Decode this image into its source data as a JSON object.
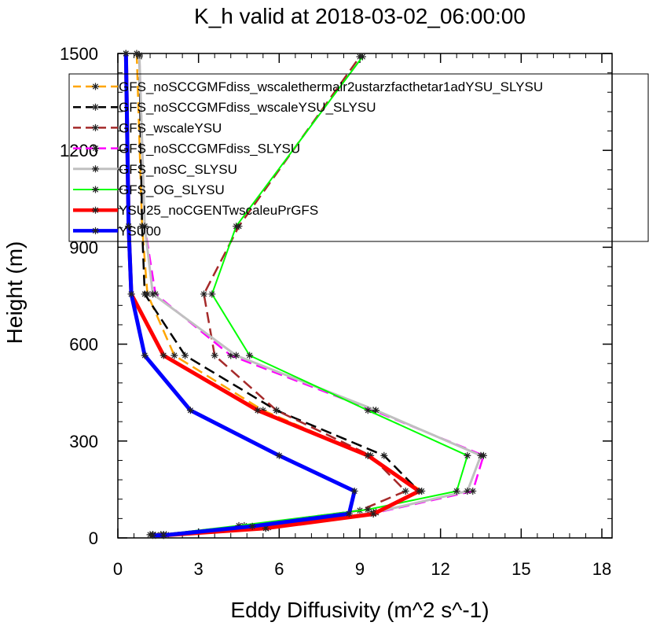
{
  "chart_data": {
    "type": "line",
    "title": "K_h valid at 2018-03-02_06:00:00",
    "xlabel": "Eddy Diffusivity (m^2 s^-1)",
    "ylabel": "Height (m)",
    "xlim": [
      0,
      18
    ],
    "ylim": [
      0,
      1500
    ],
    "xticks": [
      "0",
      "3",
      "6",
      "9",
      "12",
      "15",
      "18"
    ],
    "yticks": [
      "0",
      "300",
      "600",
      "900",
      "1200",
      "1500"
    ],
    "legend_position": "top-left inside",
    "grid": false,
    "series": [
      {
        "name": "GFS_noSCCGMFdiss_wscalethermalr2ustarzfacthetar1adYSU_SLYSU",
        "color": "#ffa500",
        "dash": "dashed",
        "width": 2.5,
        "x": [
          1.2,
          1.7,
          5.5,
          9.5,
          11.3,
          9.3,
          5.4,
          2.1,
          1.1,
          0.9,
          0.7
        ],
        "y": [
          10,
          10,
          30,
          75,
          145,
          255,
          395,
          565,
          755,
          965,
          1500
        ]
      },
      {
        "name": "GFS_noSCCGMFdiss_wscaleYSU_SLYSU",
        "color": "#000000",
        "dash": "dashed",
        "width": 2.5,
        "x": [
          1.3,
          1.7,
          5.6,
          9.6,
          11.2,
          9.9,
          5.9,
          2.5,
          1.0,
          0.9,
          0.8
        ],
        "y": [
          10,
          10,
          32,
          80,
          145,
          255,
          395,
          565,
          755,
          965,
          1490
        ]
      },
      {
        "name": "GFS_wscaleYSU",
        "color": "#a52a2a",
        "dash": "dashed",
        "width": 2.5,
        "x": [
          1.3,
          1.6,
          4.7,
          9.0,
          10.7,
          9.4,
          5.9,
          3.6,
          3.2,
          4.5,
          9.0
        ],
        "y": [
          10,
          10,
          38,
          85,
          145,
          255,
          395,
          565,
          755,
          965,
          1490
        ]
      },
      {
        "name": "GFS_noSCCGMFdiss_SLYSU",
        "color": "#ff00ff",
        "dash": "dashed",
        "width": 2.5,
        "x": [
          1.3,
          1.8,
          5.4,
          9.6,
          13.2,
          13.6,
          9.5,
          4.2,
          1.4,
          1.0,
          0.8
        ],
        "y": [
          10,
          10,
          36,
          78,
          145,
          255,
          395,
          565,
          755,
          965,
          1495
        ]
      },
      {
        "name": "GFS_noSC_SLYSU",
        "color": "#c0c0c0",
        "dash": "solid",
        "width": 3,
        "x": [
          1.3,
          1.7,
          5.6,
          9.5,
          13.0,
          13.5,
          9.6,
          4.4,
          1.3,
          1.0,
          0.8
        ],
        "y": [
          10,
          10,
          34,
          78,
          145,
          255,
          395,
          565,
          755,
          965,
          1495
        ]
      },
      {
        "name": "GFS_OG_SLYSU",
        "color": "#00ff00",
        "dash": "solid",
        "width": 2,
        "x": [
          1.3,
          1.6,
          4.5,
          9.3,
          12.6,
          13.0,
          9.3,
          4.9,
          3.5,
          4.4,
          9.1
        ],
        "y": [
          10,
          10,
          38,
          88,
          145,
          255,
          395,
          565,
          755,
          965,
          1490
        ]
      },
      {
        "name": "YSU25_noCGENTwscaleuPrGFS",
        "color": "#ff0000",
        "dash": "solid",
        "width": 5,
        "x": [
          1.4,
          1.7,
          5.5,
          9.5,
          11.2,
          9.3,
          5.2,
          1.7,
          0.5,
          0.4,
          0.3
        ],
        "y": [
          8,
          8,
          30,
          74,
          145,
          255,
          395,
          565,
          755,
          965,
          1500
        ]
      },
      {
        "name": "YSU00",
        "color": "#0000ff",
        "dash": "solid",
        "width": 5,
        "x": [
          1.3,
          1.7,
          5.0,
          8.6,
          8.8,
          6.0,
          2.7,
          1.0,
          0.5,
          0.4,
          0.3
        ],
        "y": [
          8,
          8,
          36,
          75,
          145,
          255,
          395,
          565,
          755,
          965,
          1500
        ]
      }
    ]
  }
}
